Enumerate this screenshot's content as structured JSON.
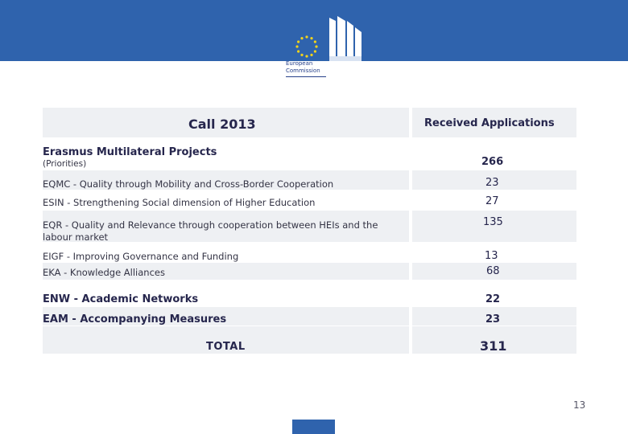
{
  "brand": {
    "logo_line1": "European",
    "logo_line2": "Commission",
    "colors": {
      "band": "#2f63ad",
      "star": "#f2d31c",
      "cell_bg": "#eef0f3"
    }
  },
  "table": {
    "header": {
      "left": "Call 2013",
      "right": "Received Applications"
    },
    "section": {
      "title": "Erasmus Multilateral Projects",
      "note": "(Priorities)",
      "value": "266"
    },
    "priorities": [
      {
        "label": "EQMC - Quality through Mobility and Cross-Border Cooperation",
        "value": "23"
      },
      {
        "label": "ESIN - Strengthening Social dimension of Higher Education",
        "value": "27"
      },
      {
        "label_line1": "EQR - Quality and Relevance through cooperation between HEIs and the",
        "label_line2": "labour market",
        "value": "135"
      },
      {
        "label": "EIGF - Improving Governance and Funding",
        "value": "13"
      },
      {
        "label": "EKA - Knowledge Alliances",
        "value": "68"
      }
    ],
    "networks": {
      "label": "ENW - Academic Networks",
      "value": "22"
    },
    "measures": {
      "label": "EAM - Accompanying Measures",
      "value": "23"
    },
    "total": {
      "label": "TOTAL",
      "value": "311"
    }
  },
  "page_number": "13"
}
